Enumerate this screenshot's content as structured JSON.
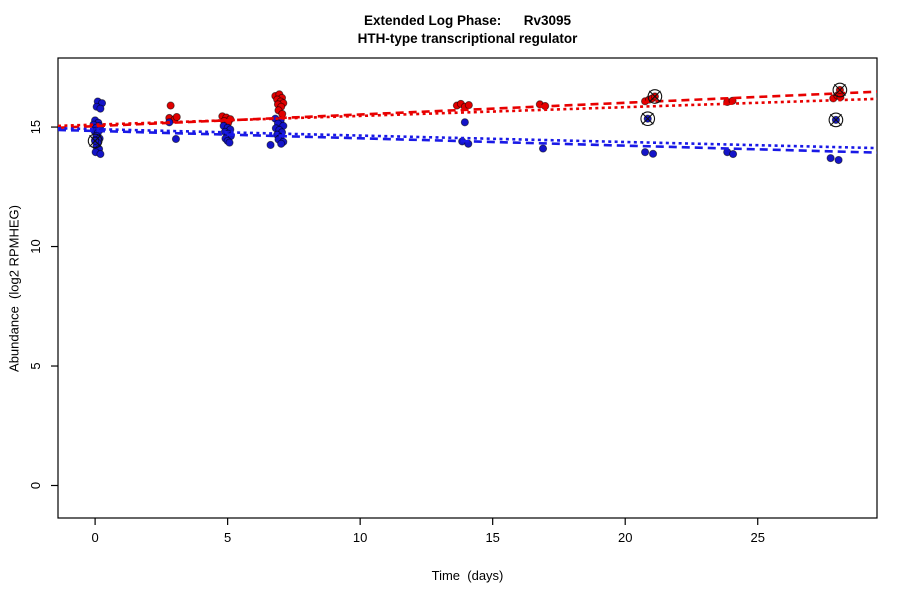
{
  "figure": {
    "title_line1": "Extended Log Phase:      Rv3095",
    "title_line2": "HTH-type transcriptional regulator"
  },
  "chart_data": {
    "type": "scatter",
    "title": "Extended Log Phase:      Rv3095",
    "subtitle": "HTH-type transcriptional regulator",
    "xlabel": "Time  (days)",
    "ylabel": "Abundance  (log2 RPMHEG)",
    "x_ticks": [
      0,
      5,
      10,
      15,
      20,
      25
    ],
    "y_ticks": [
      0,
      5,
      10,
      15
    ],
    "x_domain": [
      -1.4,
      29.5
    ],
    "y_domain": [
      -1.36,
      17.89
    ],
    "grid": false,
    "legend": "none",
    "colors": {
      "red_series": "#e10000",
      "blue_series": "#1414c8",
      "marker_outline": "#111111"
    },
    "series": [
      {
        "name": "red-points",
        "color": "#e10000",
        "points": [
          [
            0.05,
            15.05
          ],
          [
            0.18,
            14.95
          ],
          [
            0.1,
            15.0
          ],
          [
            2.85,
            15.9
          ],
          [
            2.8,
            15.38
          ],
          [
            3.0,
            15.32
          ],
          [
            3.08,
            15.42
          ],
          [
            4.8,
            15.45
          ],
          [
            4.95,
            15.4
          ],
          [
            5.1,
            15.33
          ],
          [
            4.87,
            15.25
          ],
          [
            5.02,
            15.18
          ],
          [
            6.8,
            16.3
          ],
          [
            6.95,
            16.37
          ],
          [
            7.05,
            16.22
          ],
          [
            6.87,
            16.15
          ],
          [
            7.0,
            16.07
          ],
          [
            7.1,
            16.0
          ],
          [
            6.9,
            15.95
          ],
          [
            7.02,
            15.85
          ],
          [
            6.92,
            15.7
          ],
          [
            7.06,
            15.55
          ],
          [
            6.97,
            15.12
          ],
          [
            13.65,
            15.9
          ],
          [
            13.8,
            15.97
          ],
          [
            13.95,
            15.85
          ],
          [
            14.1,
            15.92
          ],
          [
            16.78,
            15.95
          ],
          [
            16.98,
            15.88
          ],
          [
            20.75,
            16.08
          ],
          [
            20.9,
            16.15
          ],
          [
            21.02,
            16.2
          ],
          [
            23.85,
            16.05
          ],
          [
            24.05,
            16.1
          ],
          [
            27.85,
            16.2
          ],
          [
            28.0,
            16.32
          ],
          [
            28.12,
            16.25
          ]
        ]
      },
      {
        "name": "blue-points",
        "color": "#1414c8",
        "points": [
          [
            0.1,
            16.07
          ],
          [
            0.26,
            16.0
          ],
          [
            0.06,
            15.85
          ],
          [
            0.2,
            15.77
          ],
          [
            0.0,
            15.28
          ],
          [
            0.12,
            15.18
          ],
          [
            -0.06,
            15.1
          ],
          [
            0.16,
            15.05
          ],
          [
            0.04,
            14.97
          ],
          [
            0.2,
            14.9
          ],
          [
            -0.02,
            14.83
          ],
          [
            0.1,
            14.75
          ],
          [
            0.05,
            14.63
          ],
          [
            0.17,
            14.52
          ],
          [
            0.0,
            14.45
          ],
          [
            0.1,
            14.33
          ],
          [
            0.05,
            14.18
          ],
          [
            0.15,
            14.08
          ],
          [
            0.02,
            13.95
          ],
          [
            0.2,
            13.87
          ],
          [
            2.8,
            15.2
          ],
          [
            3.05,
            14.5
          ],
          [
            4.85,
            15.05
          ],
          [
            5.0,
            14.97
          ],
          [
            5.1,
            14.9
          ],
          [
            4.9,
            14.8
          ],
          [
            5.02,
            14.72
          ],
          [
            5.12,
            14.62
          ],
          [
            4.92,
            14.52
          ],
          [
            5.0,
            14.42
          ],
          [
            5.07,
            14.35
          ],
          [
            6.8,
            15.35
          ],
          [
            7.0,
            15.28
          ],
          [
            6.9,
            15.15
          ],
          [
            7.1,
            15.05
          ],
          [
            6.82,
            14.95
          ],
          [
            6.95,
            14.88
          ],
          [
            7.05,
            14.78
          ],
          [
            6.87,
            14.68
          ],
          [
            7.0,
            14.58
          ],
          [
            6.92,
            14.48
          ],
          [
            7.1,
            14.38
          ],
          [
            6.62,
            14.25
          ],
          [
            7.02,
            14.3
          ],
          [
            13.95,
            15.2
          ],
          [
            13.85,
            14.4
          ],
          [
            14.08,
            14.3
          ],
          [
            16.9,
            14.1
          ],
          [
            20.75,
            13.95
          ],
          [
            21.05,
            13.88
          ],
          [
            23.85,
            13.95
          ],
          [
            24.07,
            13.87
          ],
          [
            27.75,
            13.7
          ],
          [
            28.05,
            13.62
          ]
        ]
      }
    ],
    "flagged_points": [
      {
        "series": "red-points",
        "color": "#e10000",
        "x": 21.12,
        "y": 16.28
      },
      {
        "series": "red-points",
        "color": "#e10000",
        "x": 28.1,
        "y": 16.55
      },
      {
        "series": "blue-points",
        "color": "#1414c8",
        "x": 0.0,
        "y": 14.42
      },
      {
        "series": "blue-points",
        "color": "#1414c8",
        "x": 20.85,
        "y": 15.35
      },
      {
        "series": "blue-points",
        "color": "#1414c8",
        "x": 27.95,
        "y": 15.3
      }
    ],
    "trend_lines": [
      {
        "name": "red-dashed-fit",
        "color": "#e80000",
        "style": "dashed",
        "x1": -1.4,
        "y1": 14.97,
        "x2": 29.5,
        "y2": 16.48
      },
      {
        "name": "red-dotted-fit",
        "color": "#e80000",
        "style": "dotted",
        "x1": -1.4,
        "y1": 15.05,
        "x2": 29.5,
        "y2": 16.18
      },
      {
        "name": "blue-dotted-fit",
        "color": "#1919e6",
        "style": "dotted",
        "x1": -1.4,
        "y1": 14.95,
        "x2": 29.5,
        "y2": 14.12
      },
      {
        "name": "blue-dashed-fit",
        "color": "#1919e6",
        "style": "dashed",
        "x1": -1.4,
        "y1": 14.88,
        "x2": 29.5,
        "y2": 13.93
      }
    ]
  }
}
